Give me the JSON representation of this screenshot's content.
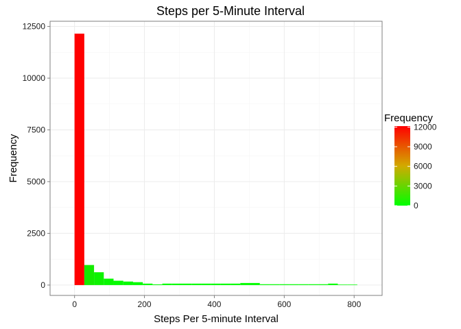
{
  "chart_data": {
    "type": "bar",
    "title": "Steps per 5-Minute Interval",
    "xlabel": "Steps Per 5-minute Interval",
    "ylabel": "Frequency",
    "xlim": [
      -70,
      880
    ],
    "ylim": [
      -500,
      12750
    ],
    "x_ticks": [
      0,
      200,
      400,
      600,
      800
    ],
    "y_ticks": [
      0,
      2500,
      5000,
      7500,
      10000,
      12500
    ],
    "grid": true,
    "bin_width": 27.9,
    "bins": [
      {
        "x": 0,
        "value": 12150
      },
      {
        "x": 27.9,
        "value": 970
      },
      {
        "x": 55.8,
        "value": 620
      },
      {
        "x": 83.7,
        "value": 310
      },
      {
        "x": 111.6,
        "value": 210
      },
      {
        "x": 139.5,
        "value": 170
      },
      {
        "x": 167.4,
        "value": 140
      },
      {
        "x": 195.3,
        "value": 70
      },
      {
        "x": 223.2,
        "value": 35
      },
      {
        "x": 251.1,
        "value": 70
      },
      {
        "x": 279,
        "value": 70
      },
      {
        "x": 306.9,
        "value": 70
      },
      {
        "x": 334.8,
        "value": 70
      },
      {
        "x": 362.7,
        "value": 70
      },
      {
        "x": 390.6,
        "value": 70
      },
      {
        "x": 418.5,
        "value": 70
      },
      {
        "x": 446.4,
        "value": 70
      },
      {
        "x": 474.3,
        "value": 100
      },
      {
        "x": 502.2,
        "value": 100
      },
      {
        "x": 530.1,
        "value": 40
      },
      {
        "x": 558,
        "value": 40
      },
      {
        "x": 585.9,
        "value": 40
      },
      {
        "x": 613.8,
        "value": 40
      },
      {
        "x": 641.7,
        "value": 40
      },
      {
        "x": 669.6,
        "value": 40
      },
      {
        "x": 697.5,
        "value": 40
      },
      {
        "x": 725.4,
        "value": 70
      },
      {
        "x": 753.3,
        "value": 25
      },
      {
        "x": 781.2,
        "value": 25
      }
    ],
    "legend": {
      "title": "Frequency",
      "placement": "right",
      "min": 0,
      "max": 12150,
      "ticks": [
        0,
        3000,
        6000,
        9000,
        12000
      ]
    },
    "colors": {
      "low": "#00ff00",
      "high": "#ff0000",
      "grid": "#ebebeb",
      "panel_border": "#7f7f7f"
    }
  }
}
